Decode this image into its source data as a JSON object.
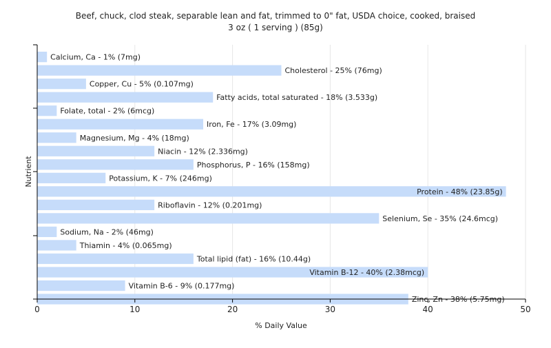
{
  "chart_data": {
    "type": "bar",
    "orientation": "horizontal",
    "title": "Beef, chuck, clod steak, separable lean and fat, trimmed to 0\" fat, USDA choice, cooked, braised",
    "subtitle": "3 oz ( 1 serving ) (85g)",
    "xlabel": "% Daily Value",
    "ylabel": "Nutrient",
    "xlim": [
      0,
      50
    ],
    "xticks": [
      "0",
      "10",
      "20",
      "30",
      "40",
      "50"
    ],
    "grid": true,
    "bar_color": "#c6dcfa",
    "categories": [
      "Calcium, Ca",
      "Cholesterol",
      "Copper, Cu",
      "Fatty acids, total saturated",
      "Folate, total",
      "Iron, Fe",
      "Magnesium, Mg",
      "Niacin",
      "Phosphorus, P",
      "Potassium, K",
      "Protein",
      "Riboflavin",
      "Selenium, Se",
      "Sodium, Na",
      "Thiamin",
      "Total lipid (fat)",
      "Vitamin B-12",
      "Vitamin B-6",
      "Zinc, Zn"
    ],
    "values": [
      1,
      25,
      5,
      18,
      2,
      17,
      4,
      12,
      16,
      7,
      48,
      12,
      35,
      2,
      4,
      16,
      40,
      9,
      38
    ],
    "labels": [
      "Calcium, Ca - 1% (7mg)",
      "Cholesterol - 25% (76mg)",
      "Copper, Cu - 5% (0.107mg)",
      "Fatty acids, total saturated - 18% (3.533g)",
      "Folate, total - 2% (6mcg)",
      "Iron, Fe - 17% (3.09mg)",
      "Magnesium, Mg - 4% (18mg)",
      "Niacin - 12% (2.336mg)",
      "Phosphorus, P - 16% (158mg)",
      "Potassium, K - 7% (246mg)",
      "Protein - 48% (23.85g)",
      "Riboflavin - 12% (0.201mg)",
      "Selenium, Se - 35% (24.6mcg)",
      "Sodium, Na - 2% (46mg)",
      "Thiamin - 4% (0.065mg)",
      "Total lipid (fat) - 16% (10.44g)",
      "Vitamin B-12 - 40% (2.38mcg)",
      "Vitamin B-6 - 9% (0.177mg)",
      "Zinc, Zn - 38% (5.75mg)"
    ]
  }
}
